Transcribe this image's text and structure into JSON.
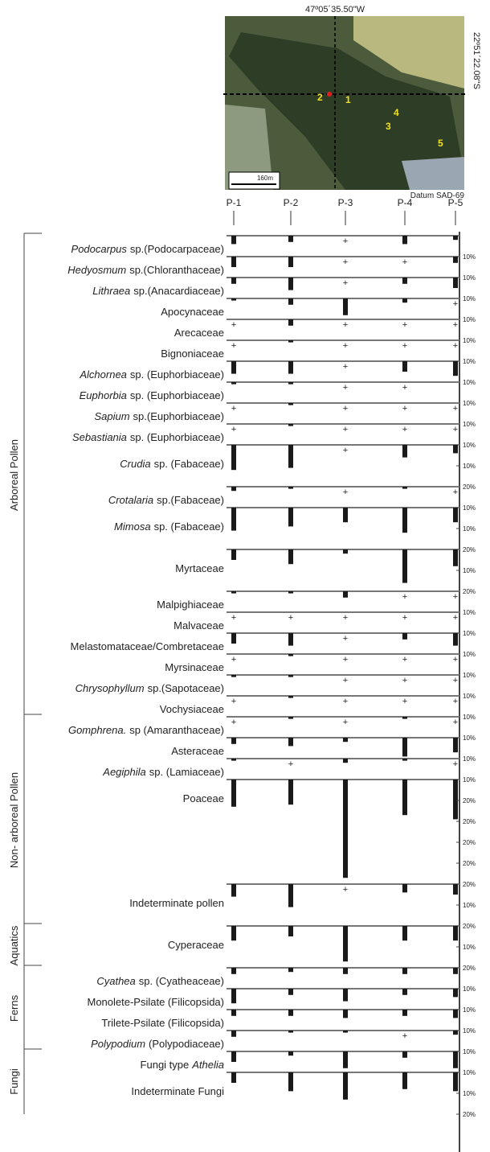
{
  "chart_data": {
    "type": "pollen_diagram",
    "sites": [
      "P-1",
      "P-2",
      "P-3",
      "P-4",
      "P-5"
    ],
    "map": {
      "lon_label": "47º05´35.50\"W",
      "lat_label": "22º51´22.08\"S",
      "points": [
        1,
        2,
        3,
        4,
        5
      ],
      "scale_label": "160m",
      "datum": "Datum SAD-69"
    },
    "bar_color": "#1a1a1a",
    "groups": [
      {
        "name": "Arboreal Pollen",
        "taxa": [
          {
            "italic": "Podocarpus",
            "name": "sp.(Podocarpaceae)",
            "values": [
              4,
              3,
              "+",
              4,
              2
            ],
            "scale": [
              "10%"
            ]
          },
          {
            "italic": "Hedyosmum",
            "name": "sp.(Chloranthaceae)",
            "values": [
              5,
              5,
              "+",
              "+",
              3
            ],
            "scale": [
              "10%"
            ]
          },
          {
            "italic": "Lithraea",
            "name": "sp.(Anacardiaceae)",
            "values": [
              3,
              6,
              "+",
              3,
              5
            ],
            "scale": [
              "10%"
            ]
          },
          {
            "name": "Apocynaceae",
            "values": [
              1,
              3,
              8,
              2,
              "+"
            ],
            "scale": [
              "10%"
            ]
          },
          {
            "name": "Arecaceae",
            "values": [
              "+",
              3,
              "+",
              "+",
              "+"
            ],
            "scale": [
              "10%"
            ]
          },
          {
            "name": "Bignoniaceae",
            "values": [
              "+",
              1,
              "+",
              "+",
              "+"
            ],
            "scale": [
              "10%"
            ]
          },
          {
            "italic": "Alchornea",
            "name": "sp. (Euphorbiaceae)",
            "values": [
              6,
              6,
              "+",
              5,
              7
            ],
            "scale": [
              "10%"
            ]
          },
          {
            "italic": "Euphorbia",
            "name": "sp. (Euphorbiaceae)",
            "values": [
              1,
              1,
              "+",
              "+",
              null
            ],
            "scale": [
              "10%"
            ]
          },
          {
            "italic": "Sapium",
            "name": "sp.(Euphorbiaceae)",
            "values": [
              "+",
              1,
              "+",
              "+",
              "+"
            ],
            "scale": [
              "10%"
            ]
          },
          {
            "italic": "Sebastiania",
            "name": "sp. (Euphorbiaceae)",
            "values": [
              "+",
              1,
              "+",
              "+",
              "+"
            ],
            "scale": [
              "10%"
            ]
          },
          {
            "italic": "Crudia",
            "name": "sp. (Fabaceae)",
            "values": [
              12,
              11,
              "+",
              6,
              4
            ],
            "scale": [
              "10%",
              "20%"
            ]
          },
          {
            "italic": "Crotalaria",
            "name": "sp.(Fabaceae)",
            "values": [
              2,
              1,
              "+",
              1,
              "+"
            ],
            "scale": [
              "10%"
            ]
          },
          {
            "italic": "Mimosa",
            "name": "sp. (Fabaceae)",
            "values": [
              11,
              9,
              7,
              12,
              7
            ],
            "scale": [
              "10%",
              "20%"
            ]
          },
          {
            "name": "Myrtaceae",
            "values": [
              5,
              7,
              2,
              16,
              8
            ],
            "scale": [
              "10%",
              "20%"
            ]
          },
          {
            "name": "Malpighiaceae",
            "values": [
              1,
              1,
              3,
              "+",
              "+"
            ],
            "scale": [
              "10%"
            ]
          },
          {
            "name": "Malvaceae",
            "values": [
              "+",
              "+",
              "+",
              "+",
              "+"
            ],
            "scale": [
              "10%"
            ]
          },
          {
            "name": "Melastomataceae/Combretaceae",
            "values": [
              5,
              6,
              "+",
              3,
              6
            ],
            "scale": [
              "10%"
            ]
          },
          {
            "name": "Myrsinaceae",
            "values": [
              "+",
              1,
              "+",
              "+",
              "+"
            ],
            "scale": [
              "10%"
            ]
          },
          {
            "italic": "Chrysophyllum",
            "name": "sp.(Sapotaceae)",
            "values": [
              1,
              1,
              "+",
              "+",
              "+"
            ],
            "scale": [
              "10%"
            ]
          },
          {
            "name": "Vochysiaceae",
            "values": [
              "+",
              1,
              "+",
              "+",
              "+"
            ],
            "scale": [
              "10%"
            ]
          }
        ]
      },
      {
        "name": "Non- arboreal Pollen",
        "taxa": [
          {
            "italic": "Gomphrena.",
            "name": "sp (Amaranthaceae)",
            "values": [
              "+",
              1,
              "+",
              1,
              "+"
            ],
            "scale": [
              "10%"
            ]
          },
          {
            "name": "Asteraceae",
            "values": [
              3,
              4,
              2,
              9,
              7
            ],
            "scale": [
              "10%"
            ]
          },
          {
            "italic": "Aegiphila",
            "name": "sp. (Lamiaceae)",
            "values": [
              1,
              "+",
              2,
              1,
              "+"
            ],
            "scale": [
              "10%"
            ]
          },
          {
            "name": "Poaceae",
            "values": [
              13,
              12,
              47,
              17,
              19
            ],
            "scale": [
              "20%",
              "20%",
              "20%",
              "20%",
              "20%"
            ]
          },
          {
            "name": "Indeterminate pollen",
            "values": [
              6,
              11,
              "+",
              4,
              5
            ],
            "scale": [
              "10%",
              "20%"
            ]
          }
        ]
      },
      {
        "name": "Aquatics",
        "taxa": [
          {
            "name": "Cyperaceae",
            "values": [
              7,
              5,
              17,
              7,
              7
            ],
            "scale": [
              "10%",
              "20%"
            ]
          }
        ]
      },
      {
        "name": "Ferns",
        "taxa": [
          {
            "italic": "Cyathea",
            "name": "sp. (Cyatheaceae)",
            "values": [
              3,
              2,
              3,
              3,
              3
            ],
            "scale": [
              "10%"
            ]
          },
          {
            "name": "Monolete-Psilate (Filicopsida)",
            "values": [
              7,
              3,
              6,
              3,
              4
            ],
            "scale": [
              "10%"
            ]
          },
          {
            "name": "Trilete-Psilate (Filicopsida)",
            "values": [
              3,
              3,
              4,
              3,
              4
            ],
            "scale": [
              "10%"
            ]
          },
          {
            "italic": "Polypodium",
            "name": "(Polypodiaceae)",
            "values": [
              3,
              1,
              1,
              "+",
              2
            ],
            "scale": [
              "10%"
            ]
          }
        ]
      },
      {
        "name": "Fungi",
        "taxa": [
          {
            "name": "Fungi type",
            "italic_after": "Athelia",
            "values": [
              5,
              2,
              8,
              3,
              8
            ],
            "scale": [
              "10%"
            ]
          },
          {
            "name": "Indeterminate Fungi",
            "values": [
              5,
              9,
              13,
              8,
              9
            ],
            "scale": [
              "10%",
              "20%"
            ]
          }
        ]
      }
    ]
  }
}
